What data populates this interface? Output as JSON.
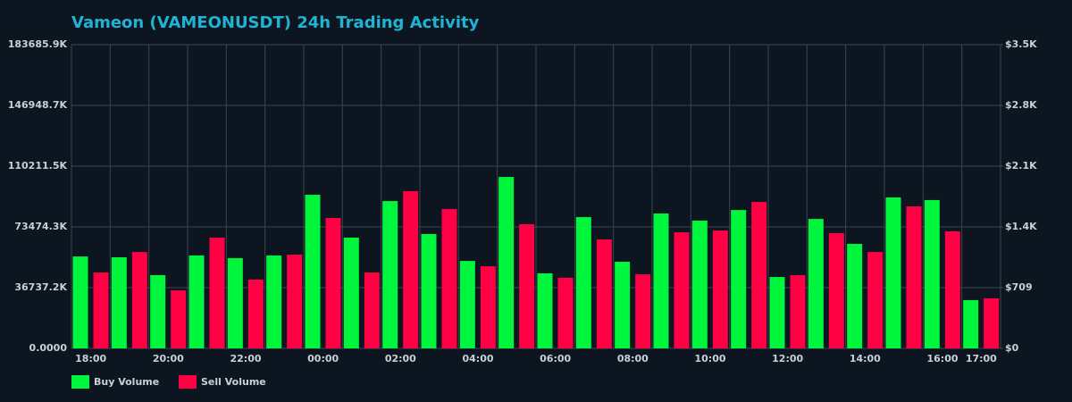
{
  "chart_data": {
    "type": "bar",
    "title": "Vameon (VAMEONUSDT) 24h Trading Activity",
    "categories": [
      "18:00",
      null,
      "20:00",
      null,
      "22:00",
      null,
      "00:00",
      null,
      "02:00",
      null,
      "04:00",
      null,
      "06:00",
      null,
      "08:00",
      null,
      "10:00",
      null,
      "12:00",
      null,
      "14:00",
      null,
      "16:00",
      "17:00"
    ],
    "series": [
      {
        "name": "Buy Volume",
        "color": "#00f53d",
        "values": [
          55600000,
          55100000,
          44300000,
          56200000,
          54600000,
          56200000,
          92900000,
          67000000,
          89100000,
          69200000,
          52900000,
          103700000,
          45400000,
          79400000,
          52400000,
          81600000,
          77300000,
          83700000,
          43200000,
          78300000,
          63200000,
          91300000,
          89700000,
          29200000
        ]
      },
      {
        "name": "Sell Volume",
        "color": "#ff0044",
        "values": [
          45900000,
          58300000,
          35100000,
          67000000,
          41600000,
          56700000,
          78900000,
          45900000,
          95100000,
          84300000,
          49700000,
          75100000,
          42700000,
          65900000,
          44800000,
          70200000,
          71300000,
          88600000,
          44300000,
          69700000,
          58300000,
          85900000,
          70800000,
          30300000
        ]
      }
    ],
    "ylim": [
      0,
      183685900
    ],
    "yticks": [
      {
        "value": 0,
        "label": "0.0000"
      },
      {
        "value": 36737200,
        "label": "36737.2K"
      },
      {
        "value": 73474300,
        "label": "73474.3K"
      },
      {
        "value": 110211500,
        "label": "110211.5K"
      },
      {
        "value": 146948700,
        "label": "146948.7K"
      },
      {
        "value": 183685900,
        "label": "183685.9K"
      }
    ],
    "y2lim": [
      0,
      3545
    ],
    "y2ticks": [
      {
        "value": 0,
        "label": "$0"
      },
      {
        "value": 709,
        "label": "$709"
      },
      {
        "value": 1418,
        "label": "$1.4K"
      },
      {
        "value": 2127,
        "label": "$2.1K"
      },
      {
        "value": 2836,
        "label": "$2.8K"
      },
      {
        "value": 3545,
        "label": "$3.5K"
      }
    ],
    "grid": true,
    "legend": "lower left"
  }
}
